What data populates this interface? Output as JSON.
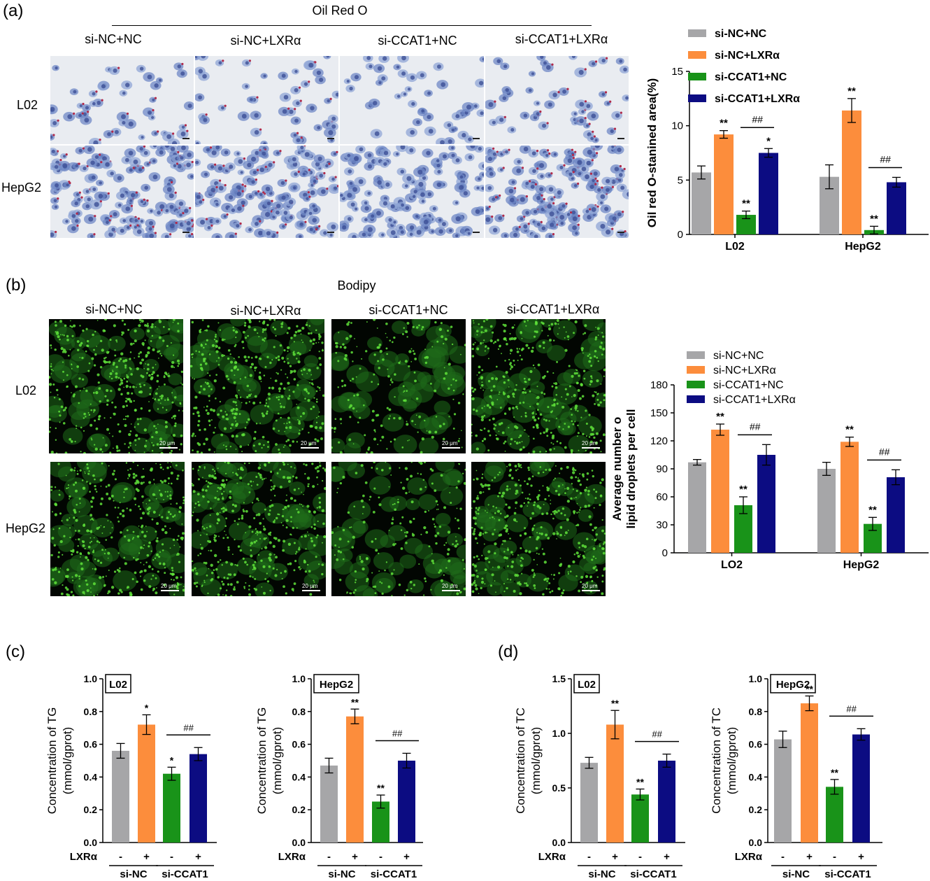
{
  "panels": {
    "a": {
      "letter": "(a)",
      "title": "Oil Red O",
      "columns": [
        "si-NC+NC",
        "si-NC+LXRα",
        "si-CCAT1+NC",
        "si-CCAT1+LXRα"
      ],
      "rows": [
        "L02",
        "HepG2"
      ]
    },
    "b": {
      "letter": "(b)",
      "title": "Bodipy",
      "columns": [
        "si-NC+NC",
        "si-NC+LXRα",
        "si-CCAT1+NC",
        "si-CCAT1+LXRα"
      ],
      "rows": [
        "L02",
        "HepG2"
      ],
      "scale_label": "20 μm"
    },
    "c": {
      "letter": "(c)"
    },
    "d": {
      "letter": "(d)"
    }
  },
  "colors": {
    "gray": "#a6a6a8",
    "orange": "#fc8d3c",
    "green": "#199319",
    "navy": "#0c0c82"
  },
  "chart_data": [
    {
      "id": "a-bar",
      "type": "bar",
      "ylabel": "Oil red O-stanined area(%)",
      "ylim": [
        0,
        15
      ],
      "yticks": [
        0,
        5,
        10,
        15
      ],
      "categories": [
        "L02",
        "HepG2"
      ],
      "series": [
        {
          "name": "si-NC+NC",
          "color": "#a6a6a8",
          "values": [
            5.7,
            5.3
          ],
          "errors": [
            0.6,
            1.1
          ],
          "sig": [
            "",
            ""
          ]
        },
        {
          "name": "si-NC+LXRα",
          "color": "#fc8d3c",
          "values": [
            9.2,
            11.4
          ],
          "errors": [
            0.35,
            1.1
          ],
          "sig": [
            "**",
            "**"
          ]
        },
        {
          "name": "si-CCAT1+NC",
          "color": "#199319",
          "values": [
            1.8,
            0.4
          ],
          "errors": [
            0.35,
            0.35
          ],
          "sig": [
            "**",
            "**"
          ]
        },
        {
          "name": "si-CCAT1+LXRα",
          "color": "#0c0c82",
          "values": [
            7.5,
            4.8
          ],
          "errors": [
            0.4,
            0.45
          ],
          "sig": [
            "*",
            ""
          ]
        }
      ],
      "brackets": [
        "##",
        "##"
      ],
      "legend": "top"
    },
    {
      "id": "b-bar",
      "type": "bar",
      "ylabel": "Average number of lipid droplets per cell",
      "ylim": [
        0,
        180
      ],
      "yticks": [
        0,
        30,
        60,
        90,
        120,
        150,
        180
      ],
      "categories": [
        "LO2",
        "HepG2"
      ],
      "series": [
        {
          "name": "si-NC+NC",
          "color": "#a6a6a8",
          "values": [
            97,
            90
          ],
          "errors": [
            3,
            7
          ],
          "sig": [
            "",
            ""
          ]
        },
        {
          "name": "si-NC+LXRα",
          "color": "#fc8d3c",
          "values": [
            132,
            119
          ],
          "errors": [
            6,
            5
          ],
          "sig": [
            "**",
            "**"
          ]
        },
        {
          "name": "si-CCAT1+NC",
          "color": "#199319",
          "values": [
            51,
            31
          ],
          "errors": [
            9,
            7
          ],
          "sig": [
            "**",
            "**"
          ]
        },
        {
          "name": "si-CCAT1+LXRα",
          "color": "#0c0c82",
          "values": [
            105,
            81
          ],
          "errors": [
            11,
            8
          ],
          "sig": [
            "",
            ""
          ]
        }
      ],
      "brackets": [
        "##",
        "##"
      ],
      "legend": "top"
    },
    {
      "id": "c1",
      "type": "bar",
      "label": "L02",
      "ylabel": "Concentration of TG (mmol/gprot)",
      "ylim": [
        0,
        1.0
      ],
      "yticks": [
        0.0,
        0.2,
        0.4,
        0.6,
        0.8,
        1.0
      ],
      "values": [
        0.56,
        0.72,
        0.42,
        0.54
      ],
      "errors": [
        0.045,
        0.06,
        0.04,
        0.04
      ],
      "sig": [
        "",
        "*",
        "*",
        ""
      ],
      "bracket": "##",
      "lxr_label": "LXRα",
      "lxr_signs": [
        "-",
        "+",
        "-",
        "+"
      ],
      "groups": [
        "si-NC",
        "si-CCAT1"
      ]
    },
    {
      "id": "c2",
      "type": "bar",
      "label": "HepG2",
      "ylabel": "Concentration of TG (mmol/gprot)",
      "ylim": [
        0,
        1.0
      ],
      "yticks": [
        0.0,
        0.2,
        0.4,
        0.6,
        0.8,
        1.0
      ],
      "values": [
        0.47,
        0.77,
        0.25,
        0.5
      ],
      "errors": [
        0.045,
        0.045,
        0.04,
        0.045
      ],
      "sig": [
        "",
        "**",
        "**",
        ""
      ],
      "bracket": "##",
      "lxr_label": "LXRα",
      "lxr_signs": [
        "-",
        "+",
        "-",
        "+"
      ],
      "groups": [
        "si-NC",
        "si-CCAT1"
      ]
    },
    {
      "id": "d1",
      "type": "bar",
      "label": "L02",
      "ylabel": "Concentration of TC (mmol/gprot)",
      "ylim": [
        0,
        1.5
      ],
      "yticks": [
        0.0,
        0.5,
        1.0,
        1.5
      ],
      "values": [
        0.73,
        1.08,
        0.44,
        0.75
      ],
      "errors": [
        0.05,
        0.13,
        0.05,
        0.06
      ],
      "sig": [
        "",
        "**",
        "**",
        ""
      ],
      "bracket": "##",
      "lxr_label": "LXRα",
      "lxr_signs": [
        "-",
        "+",
        "-",
        "+"
      ],
      "groups": [
        "si-NC",
        "si-CCAT1"
      ]
    },
    {
      "id": "d2",
      "type": "bar",
      "label": "HepG2",
      "ylabel": "Concentration of TC (mmol/gprot)",
      "ylim": [
        0,
        1.0
      ],
      "yticks": [
        0.0,
        0.2,
        0.4,
        0.6,
        0.8,
        1.0
      ],
      "values": [
        0.63,
        0.85,
        0.34,
        0.66
      ],
      "errors": [
        0.05,
        0.045,
        0.045,
        0.035
      ],
      "sig": [
        "",
        "**",
        "**",
        ""
      ],
      "bracket": "##",
      "lxr_label": "LXRα",
      "lxr_signs": [
        "-",
        "+",
        "-",
        "+"
      ],
      "groups": [
        "si-NC",
        "si-CCAT1"
      ]
    }
  ]
}
